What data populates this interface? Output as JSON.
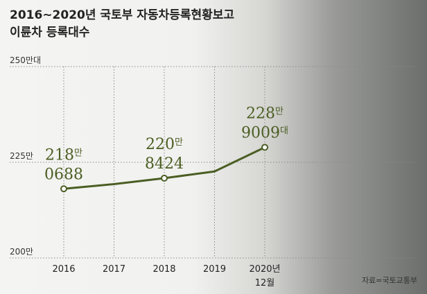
{
  "title_lines": [
    "2016~2020년 국토부 자동차등록현황보고",
    "이륜차 등록대수"
  ],
  "source": "자료=국토교통부",
  "chart_data": {
    "type": "line",
    "x": [
      "2016",
      "2017",
      "2018",
      "2019",
      "2020"
    ],
    "x_tick_labels": [
      "2016",
      "2017",
      "2018",
      "2019",
      "2020년"
    ],
    "x_tick_sublabels": [
      "",
      "",
      "",
      "",
      "12월"
    ],
    "values": [
      2180688,
      2193000,
      2208424,
      2226000,
      2289009
    ],
    "ylim": [
      2000000,
      2500000
    ],
    "y_ticks": [
      {
        "value": 2500000,
        "label": "250만대"
      },
      {
        "value": 2250000,
        "label": "225만"
      },
      {
        "value": 2000000,
        "label": "200만"
      }
    ],
    "data_labels": [
      {
        "index": 0,
        "line1": "218",
        "unit1": "만",
        "line2": "0688",
        "unit2": ""
      },
      {
        "index": 2,
        "line1": "220",
        "unit1": "만",
        "line2": "8424",
        "unit2": ""
      },
      {
        "index": 4,
        "line1": "228",
        "unit1": "만",
        "line2": "9009",
        "unit2": "대"
      }
    ],
    "markers_at": [
      0,
      2,
      4
    ],
    "line_color": "#4b5e23",
    "grid": "dotted horizontal + vertical"
  }
}
